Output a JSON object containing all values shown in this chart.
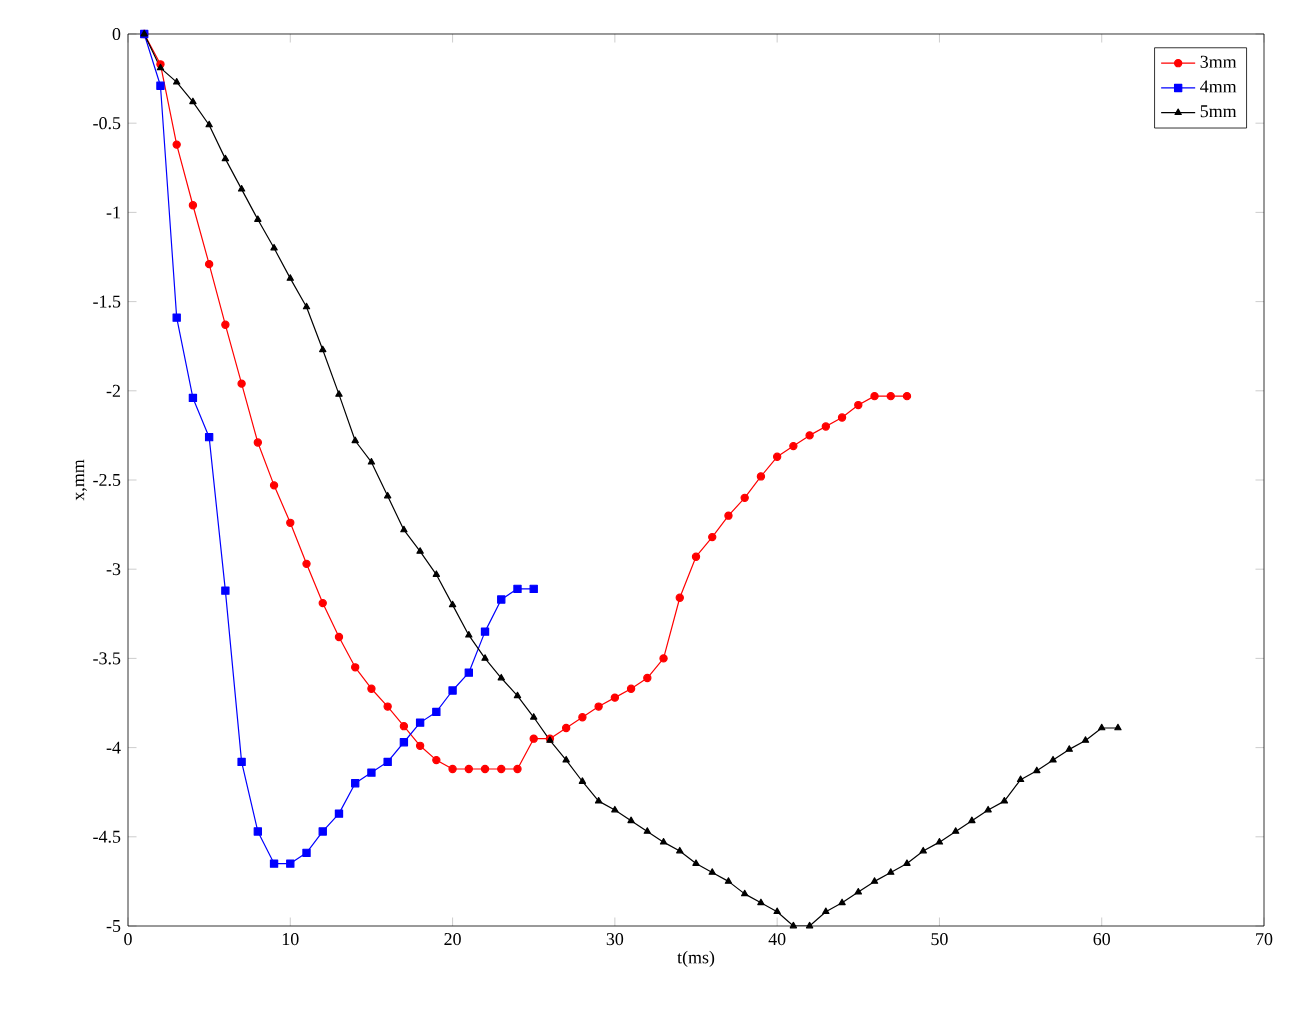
{
  "chart_data": {
    "type": "line",
    "xlabel": "t(ms)",
    "ylabel": "x,mm",
    "xlim": [
      0,
      70
    ],
    "xticks": [
      0,
      10,
      20,
      30,
      40,
      50,
      60,
      70
    ],
    "ylim": [
      -5,
      0
    ],
    "yticks": [
      -5,
      -4.5,
      -4,
      -3.5,
      -3,
      -2.5,
      -2,
      -1.5,
      -1,
      -0.5,
      0
    ],
    "grid": false,
    "legend": "top right",
    "line_style": "solid",
    "series": [
      {
        "name": "3mm",
        "color": "#ff0000",
        "marker": "circle",
        "x": [
          1,
          2,
          3,
          4,
          5,
          6,
          7,
          8,
          9,
          10,
          11,
          12,
          13,
          14,
          15,
          16,
          17,
          18,
          19,
          20,
          21,
          22,
          23,
          24,
          25,
          26,
          27,
          28,
          29,
          30,
          31,
          32,
          33,
          34,
          35,
          36,
          37,
          38,
          39,
          40,
          41,
          42,
          43,
          44,
          45,
          46,
          47,
          48
        ],
        "values": [
          0,
          -0.17,
          -0.62,
          -0.96,
          -1.29,
          -1.63,
          -1.96,
          -2.29,
          -2.53,
          -2.74,
          -2.97,
          -3.19,
          -3.38,
          -3.55,
          -3.67,
          -3.77,
          -3.88,
          -3.99,
          -4.07,
          -4.12,
          -4.12,
          -4.12,
          -4.12,
          -4.12,
          -3.95,
          -3.95,
          -3.89,
          -3.83,
          -3.77,
          -3.72,
          -3.67,
          -3.61,
          -3.5,
          -3.16,
          -2.93,
          -2.82,
          -2.7,
          -2.6,
          -2.48,
          -2.37,
          -2.31,
          -2.25,
          -2.2,
          -2.15,
          -2.08,
          -2.03,
          -2.03,
          -2.03
        ]
      },
      {
        "name": "4mm",
        "color": "#0000ff",
        "marker": "square",
        "x": [
          1,
          2,
          3,
          4,
          5,
          6,
          7,
          8,
          9,
          10,
          11,
          12,
          13,
          14,
          15,
          16,
          17,
          18,
          19,
          20,
          21,
          22,
          23,
          24,
          25
        ],
        "values": [
          0,
          -0.29,
          -1.59,
          -2.04,
          -2.26,
          -3.12,
          -4.08,
          -4.47,
          -4.65,
          -4.65,
          -4.59,
          -4.47,
          -4.37,
          -4.2,
          -4.14,
          -4.08,
          -3.97,
          -3.86,
          -3.8,
          -3.68,
          -3.58,
          -3.35,
          -3.17,
          -3.11,
          -3.11
        ]
      },
      {
        "name": "5mm",
        "color": "#000000",
        "marker": "triangle",
        "x": [
          1,
          2,
          3,
          4,
          5,
          6,
          7,
          8,
          9,
          10,
          11,
          12,
          13,
          14,
          15,
          16,
          17,
          18,
          19,
          20,
          21,
          22,
          23,
          24,
          25,
          26,
          27,
          28,
          29,
          30,
          31,
          32,
          33,
          34,
          35,
          36,
          37,
          38,
          39,
          40,
          41,
          42,
          43,
          44,
          45,
          46,
          47,
          48,
          49,
          50,
          51,
          52,
          53,
          54,
          55,
          56,
          57,
          58,
          59,
          60,
          61
        ],
        "values": [
          0,
          -0.19,
          -0.27,
          -0.38,
          -0.51,
          -0.7,
          -0.87,
          -1.04,
          -1.2,
          -1.37,
          -1.53,
          -1.77,
          -2.02,
          -2.28,
          -2.4,
          -2.59,
          -2.78,
          -2.9,
          -3.03,
          -3.2,
          -3.37,
          -3.5,
          -3.61,
          -3.71,
          -3.83,
          -3.96,
          -4.07,
          -4.19,
          -4.3,
          -4.35,
          -4.41,
          -4.47,
          -4.53,
          -4.58,
          -4.65,
          -4.7,
          -4.75,
          -4.82,
          -4.87,
          -4.92,
          -5,
          -5,
          -4.92,
          -4.87,
          -4.81,
          -4.75,
          -4.7,
          -4.65,
          -4.58,
          -4.53,
          -4.47,
          -4.41,
          -4.35,
          -4.3,
          -4.18,
          -4.13,
          -4.07,
          -4.01,
          -3.96,
          -3.89,
          -3.89
        ]
      }
    ]
  }
}
